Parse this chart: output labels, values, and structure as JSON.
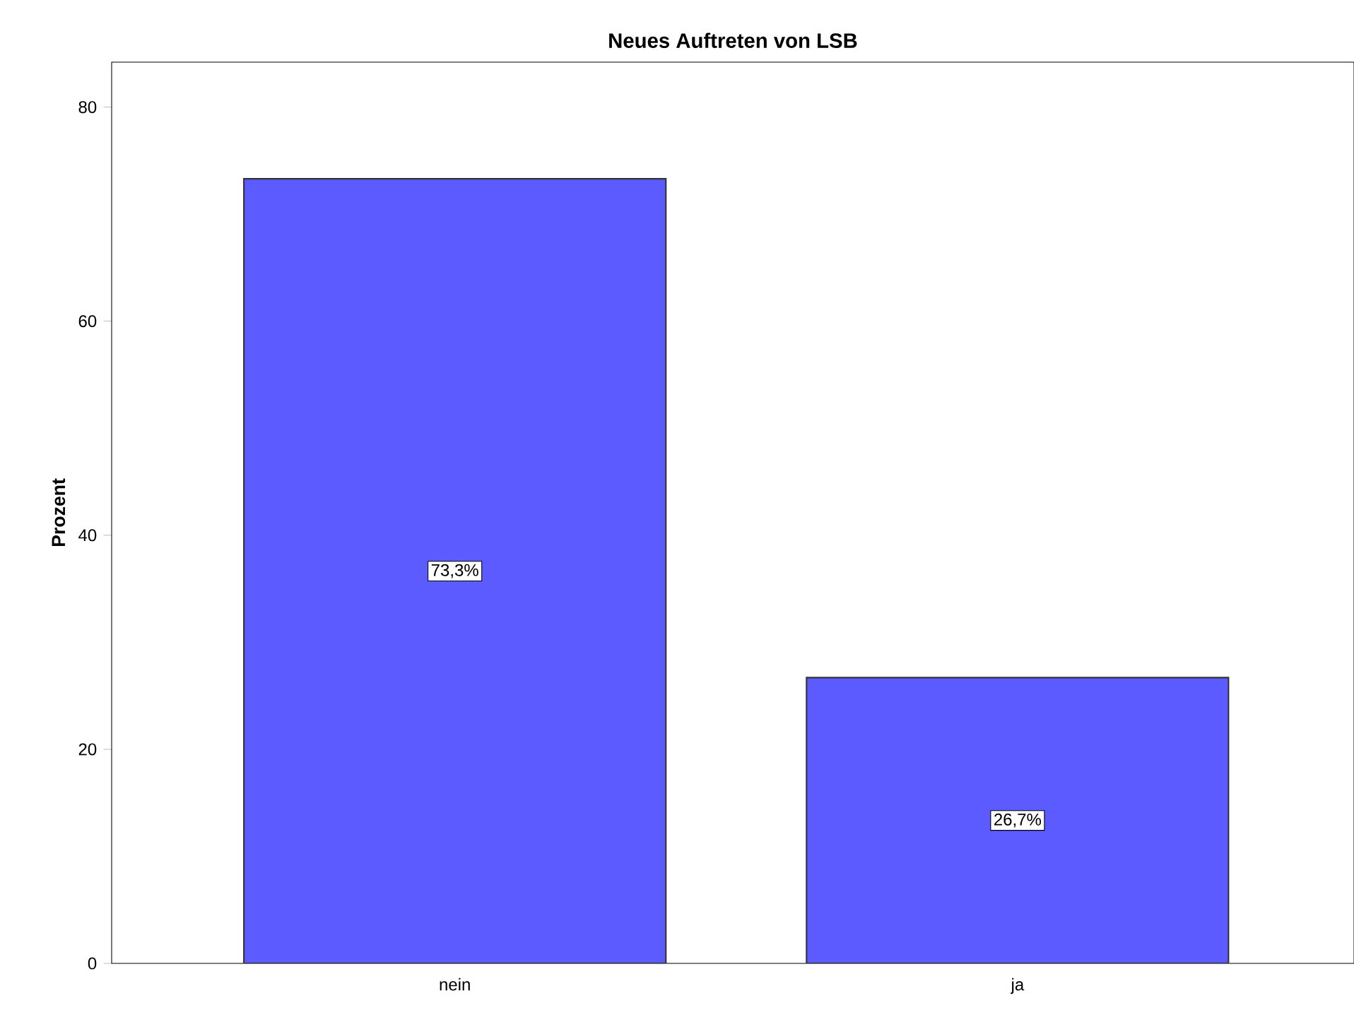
{
  "chart_data": {
    "type": "bar",
    "title": "Neues Auftreten von LSB",
    "ylabel": "Prozent",
    "categories": [
      "nein",
      "ja"
    ],
    "values": [
      73.3,
      26.7
    ],
    "value_labels": [
      "73,3%",
      "26,7%"
    ],
    "color": "#5b5bff",
    "ylim": [
      0,
      84.2
    ],
    "yticks": [
      0,
      20,
      40,
      60,
      80
    ],
    "grid": false
  }
}
